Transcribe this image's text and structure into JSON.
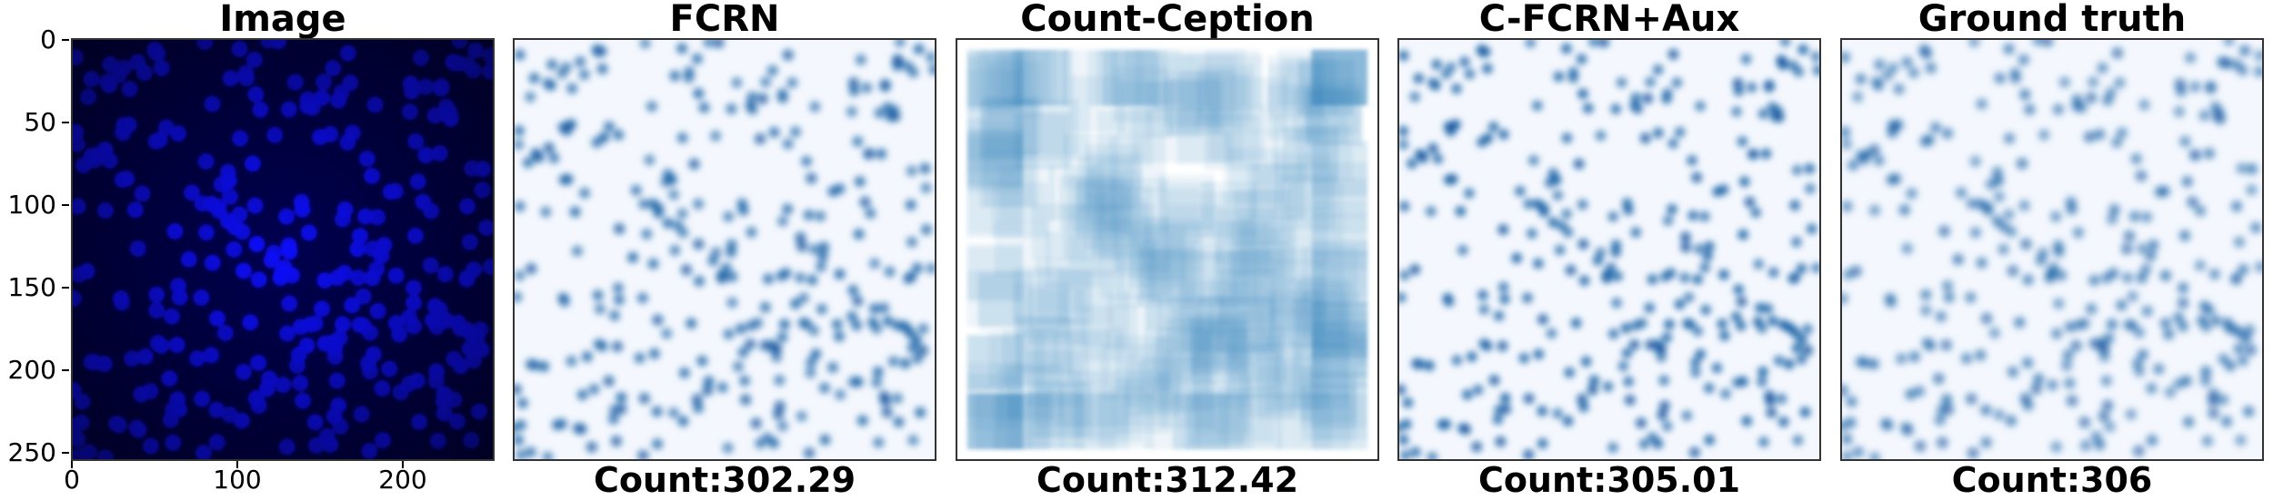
{
  "panels": [
    {
      "title": "Image",
      "count": ""
    },
    {
      "title": "FCRN",
      "count": "Count:302.29"
    },
    {
      "title": "Count-Ception",
      "count": "Count:312.42"
    },
    {
      "title": "C-FCRN+Aux",
      "count": "Count:305.01"
    },
    {
      "title": "Ground truth",
      "count": "Count:306"
    }
  ],
  "axes": {
    "y_ticks": [
      "0",
      "50",
      "100",
      "150",
      "200",
      "250"
    ],
    "x_ticks": [
      "0",
      "100",
      "200"
    ]
  },
  "colors": {
    "image_bg": "#000050",
    "cell": "#1010ff",
    "density_bg": "#f4f8fe",
    "density_mark": "#08519c",
    "ception_mark": "#2f7fbf"
  }
}
